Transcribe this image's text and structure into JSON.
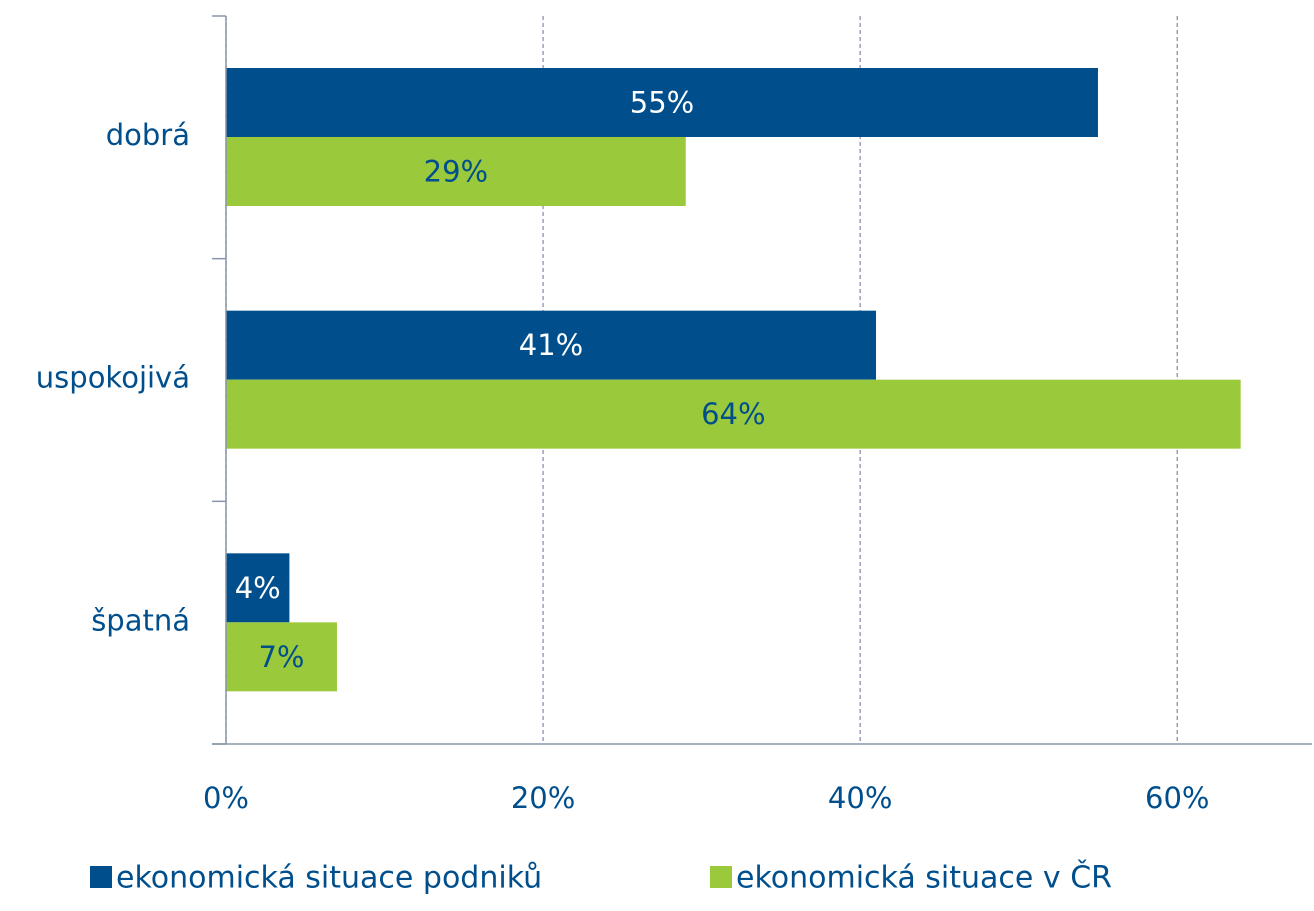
{
  "chart_data": {
    "type": "hbar",
    "categories": [
      "dobrá",
      "uspokojivá",
      "špatná"
    ],
    "series": [
      {
        "name": "ekonomická situace podniků",
        "color": "#004f8c",
        "values": [
          55,
          41,
          4
        ],
        "value_labels": [
          "55%",
          "41%",
          "4%"
        ]
      },
      {
        "name": "ekonomická situace v ČR",
        "color": "#9bc93c",
        "values": [
          29,
          64,
          7
        ],
        "value_labels": [
          "29%",
          "64%",
          "7%"
        ]
      }
    ],
    "xlim": [
      0,
      68.5
    ],
    "xticks": [
      {
        "value": 0,
        "label": "0%"
      },
      {
        "value": 20,
        "label": "20%"
      },
      {
        "value": 40,
        "label": "40%"
      },
      {
        "value": 60,
        "label": "60%"
      }
    ],
    "grid": true,
    "legend": "bottom"
  }
}
